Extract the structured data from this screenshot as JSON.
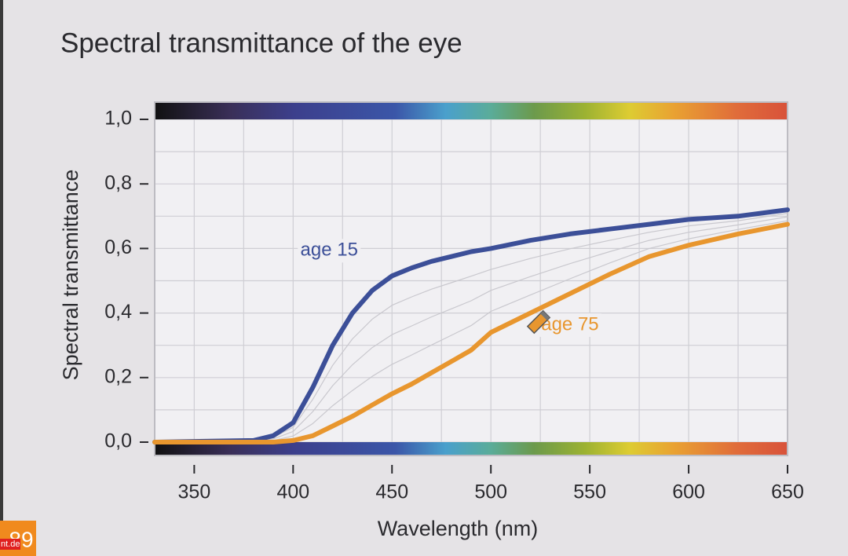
{
  "chart_data": {
    "type": "line",
    "title": "Spectral transmittance of the eye",
    "x_label": "Wavelength (nm)",
    "y_label": "Spectral transmittance",
    "x": [
      330,
      380,
      390,
      400,
      410,
      420,
      430,
      440,
      450,
      460,
      470,
      480,
      490,
      500,
      520,
      540,
      560,
      580,
      600,
      625,
      650
    ],
    "series": [
      {
        "color": "#c9c8ce",
        "values": [
          0,
          0.004,
          0.015,
          0.046,
          0.133,
          0.238,
          0.32,
          0.381,
          0.424,
          0.45,
          0.474,
          0.494,
          0.514,
          0.535,
          0.569,
          0.599,
          0.625,
          0.65,
          0.67,
          0.686,
          0.709
        ]
      },
      {
        "color": "#c9c8ce",
        "values": [
          0,
          0.003,
          0.01,
          0.033,
          0.095,
          0.175,
          0.24,
          0.293,
          0.333,
          0.36,
          0.388,
          0.413,
          0.438,
          0.47,
          0.513,
          0.553,
          0.59,
          0.625,
          0.65,
          0.673,
          0.698
        ]
      },
      {
        "color": "#c9c8ce",
        "values": [
          0,
          0.001,
          0.005,
          0.019,
          0.058,
          0.113,
          0.16,
          0.204,
          0.241,
          0.27,
          0.301,
          0.331,
          0.361,
          0.405,
          0.456,
          0.506,
          0.555,
          0.6,
          0.63,
          0.659,
          0.686
        ]
      },
      {
        "name": "age 15",
        "color": "#3c4f98",
        "values": [
          0,
          0.005,
          0.02,
          0.06,
          0.17,
          0.3,
          0.4,
          0.47,
          0.515,
          0.54,
          0.56,
          0.575,
          0.59,
          0.6,
          0.625,
          0.645,
          0.66,
          0.675,
          0.69,
          0.7,
          0.72
        ]
      },
      {
        "name": "age 75",
        "color": "#e8962e",
        "values": [
          0,
          0,
          0,
          0.005,
          0.02,
          0.05,
          0.08,
          0.115,
          0.15,
          0.18,
          0.215,
          0.25,
          0.285,
          0.34,
          0.4,
          0.46,
          0.52,
          0.575,
          0.61,
          0.645,
          0.675
        ]
      }
    ],
    "xlim": [
      330,
      650
    ],
    "xticks": [
      350,
      400,
      450,
      500,
      550,
      600,
      650
    ],
    "ylim": [
      0,
      1
    ],
    "yticks": [
      {
        "value": 0,
        "label": "0,0"
      },
      {
        "value": 0.2,
        "label": "0,2"
      },
      {
        "value": 0.4,
        "label": "0,4"
      },
      {
        "value": 0.6,
        "label": "0,6"
      },
      {
        "value": 0.8,
        "label": "0,8"
      },
      {
        "value": 1,
        "label": "1,0"
      }
    ],
    "grid": true
  },
  "footer": {
    "slide_number": "89",
    "source": "nt.de"
  }
}
